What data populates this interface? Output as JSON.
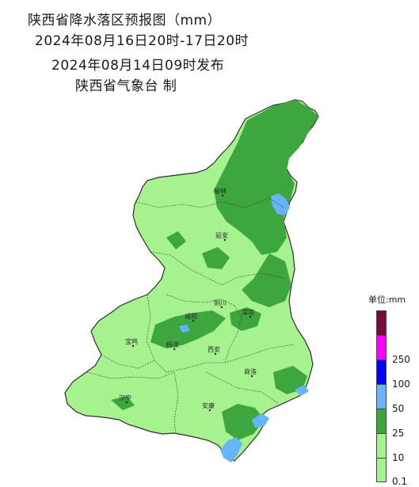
{
  "title": {
    "line1": "陕西省降水落区预报图（mm）",
    "line2": "2024年08月16日20时-17日20时",
    "line3": "2024年08月14日09时发布",
    "line4": "陕西省气象台  制"
  },
  "legend": {
    "title": "单位:mm",
    "levels": [
      {
        "label": "",
        "color": "#7a0a3c"
      },
      {
        "label": "250",
        "color": "#ff00ff"
      },
      {
        "label": "100",
        "color": "#0000ff"
      },
      {
        "label": "50",
        "color": "#66b3ff"
      },
      {
        "label": "25",
        "color": "#3ea63e"
      },
      {
        "label": "10",
        "color": "#a6f28f"
      },
      {
        "label": "0.1",
        "color": "#a6f28f"
      }
    ]
  },
  "colors": {
    "light_rain": "#a6f28f",
    "moderate_rain": "#3ea63e",
    "heavy_rain": "#66b3ff"
  },
  "cities": [
    {
      "name": "榆林"
    },
    {
      "name": "延安"
    },
    {
      "name": "铜川"
    },
    {
      "name": "渭南"
    },
    {
      "name": "咸阳"
    },
    {
      "name": "宝鸡"
    },
    {
      "name": "杨凌"
    },
    {
      "name": "西安"
    },
    {
      "name": "商洛"
    },
    {
      "name": "汉中"
    },
    {
      "name": "安康"
    }
  ]
}
